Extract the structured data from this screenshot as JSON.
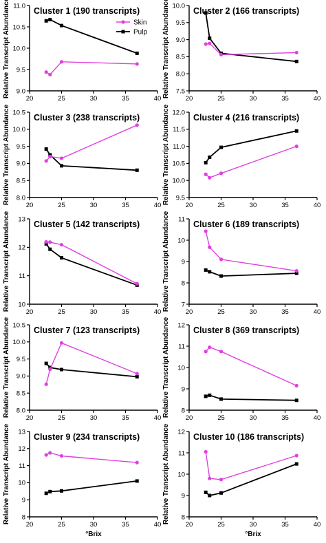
{
  "colors": {
    "skin": "#e040e0",
    "pulp": "#000000"
  },
  "legend": {
    "placement": "top-right of first panel",
    "entries": [
      "Skin",
      "Pulp"
    ]
  },
  "chart_data": [
    {
      "type": "line",
      "title": "Cluster 1 (190 transcripts)",
      "xlabel": "",
      "ylabel": "Relative Transcript Abundance",
      "xlim": [
        20,
        40
      ],
      "xticks": [
        "20",
        "25",
        "30",
        "35",
        "40"
      ],
      "ylim": [
        9.0,
        11.0
      ],
      "yticks": [
        "9.0",
        "9.5",
        "10.0",
        "10.5",
        "11.0"
      ],
      "series": [
        {
          "name": "Skin",
          "x": [
            22.6,
            23.2,
            25.0,
            36.8
          ],
          "y": [
            9.44,
            9.38,
            9.68,
            9.63
          ]
        },
        {
          "name": "Pulp",
          "x": [
            22.6,
            23.2,
            25.0,
            36.8
          ],
          "y": [
            10.64,
            10.67,
            10.53,
            9.88
          ]
        }
      ]
    },
    {
      "type": "line",
      "title": "Cluster 2 (166 transcripts)",
      "xlabel": "",
      "ylabel": "Relative Transcript Abundance",
      "xlim": [
        20,
        40
      ],
      "xticks": [
        "20",
        "25",
        "30",
        "35",
        "40"
      ],
      "ylim": [
        7.5,
        10.0
      ],
      "yticks": [
        "7.5",
        "8.0",
        "8.5",
        "9.0",
        "9.5",
        "10.0"
      ],
      "series": [
        {
          "name": "Skin",
          "x": [
            22.6,
            23.2,
            25.0,
            36.8
          ],
          "y": [
            8.87,
            8.89,
            8.56,
            8.62
          ]
        },
        {
          "name": "Pulp",
          "x": [
            22.6,
            23.2,
            25.0,
            36.8
          ],
          "y": [
            9.78,
            9.04,
            8.6,
            8.36
          ]
        }
      ]
    },
    {
      "type": "line",
      "title": "Cluster 3 (238 transcripts)",
      "xlabel": "",
      "ylabel": "Relative Transcript Abundance",
      "xlim": [
        20,
        40
      ],
      "xticks": [
        "20",
        "25",
        "30",
        "35",
        "40"
      ],
      "ylim": [
        8.0,
        10.5
      ],
      "yticks": [
        "8.0",
        "8.5",
        "9.0",
        "9.5",
        "10.0",
        "10.5"
      ],
      "series": [
        {
          "name": "Skin",
          "x": [
            22.6,
            23.2,
            25.0,
            36.8
          ],
          "y": [
            9.07,
            9.2,
            9.15,
            10.12
          ]
        },
        {
          "name": "Pulp",
          "x": [
            22.6,
            23.2,
            25.0,
            36.8
          ],
          "y": [
            9.42,
            9.25,
            8.93,
            8.8
          ]
        }
      ]
    },
    {
      "type": "line",
      "title": "Cluster 4 (216 transcripts)",
      "xlabel": "",
      "ylabel": "Relative Transcript Abundance",
      "xlim": [
        20,
        40
      ],
      "xticks": [
        "20",
        "25",
        "30",
        "35",
        "40"
      ],
      "ylim": [
        9.5,
        12.0
      ],
      "yticks": [
        "9.5",
        "10.0",
        "10.5",
        "11.0",
        "11.5",
        "12.0"
      ],
      "series": [
        {
          "name": "Skin",
          "x": [
            22.6,
            23.2,
            25.0,
            36.8
          ],
          "y": [
            10.18,
            10.08,
            10.21,
            11.0
          ]
        },
        {
          "name": "Pulp",
          "x": [
            22.6,
            23.2,
            25.0,
            36.8
          ],
          "y": [
            10.52,
            10.68,
            10.97,
            11.45
          ]
        }
      ]
    },
    {
      "type": "line",
      "title": "Cluster 5 (142 transcripts)",
      "xlabel": "",
      "ylabel": "Relative Transcript Abundance",
      "xlim": [
        20,
        40
      ],
      "xticks": [
        "20",
        "25",
        "30",
        "35",
        "40"
      ],
      "ylim": [
        10,
        13
      ],
      "yticks": [
        "10",
        "11",
        "12",
        "13"
      ],
      "series": [
        {
          "name": "Skin",
          "x": [
            22.6,
            23.2,
            25.0,
            36.8
          ],
          "y": [
            12.19,
            12.18,
            12.09,
            10.72
          ]
        },
        {
          "name": "Pulp",
          "x": [
            22.6,
            23.2,
            25.0,
            36.8
          ],
          "y": [
            12.12,
            11.93,
            11.63,
            10.67
          ]
        }
      ]
    },
    {
      "type": "line",
      "title": "Cluster 6 (189 transcripts)",
      "xlabel": "",
      "ylabel": "Relative Transcript Abundance",
      "xlim": [
        20,
        40
      ],
      "xticks": [
        "20",
        "25",
        "30",
        "35",
        "40"
      ],
      "ylim": [
        7,
        11
      ],
      "yticks": [
        "7",
        "8",
        "9",
        "10",
        "11"
      ],
      "series": [
        {
          "name": "Skin",
          "x": [
            22.6,
            23.2,
            25.0,
            36.8
          ],
          "y": [
            10.42,
            9.67,
            9.1,
            8.56
          ]
        },
        {
          "name": "Pulp",
          "x": [
            22.6,
            23.2,
            25.0,
            36.8
          ],
          "y": [
            8.6,
            8.52,
            8.32,
            8.45
          ]
        }
      ]
    },
    {
      "type": "line",
      "title": "Cluster 7 (123 transcripts)",
      "xlabel": "",
      "ylabel": "Relative Transcript Abundance",
      "xlim": [
        20,
        40
      ],
      "xticks": [
        "20",
        "25",
        "30",
        "35",
        "40"
      ],
      "ylim": [
        8.0,
        10.5
      ],
      "yticks": [
        "8.0",
        "8.5",
        "9.0",
        "9.5",
        "10.0",
        "10.5"
      ],
      "series": [
        {
          "name": "Skin",
          "x": [
            22.6,
            23.2,
            25.0,
            36.8
          ],
          "y": [
            8.76,
            9.2,
            9.97,
            9.07
          ]
        },
        {
          "name": "Pulp",
          "x": [
            22.6,
            23.2,
            25.0,
            36.8
          ],
          "y": [
            9.37,
            9.25,
            9.19,
            8.98
          ]
        }
      ]
    },
    {
      "type": "line",
      "title": "Cluster 8 (369 transcripts)",
      "xlabel": "",
      "ylabel": "Relative Transcript Abundance",
      "xlim": [
        20,
        40
      ],
      "xticks": [
        "20",
        "25",
        "30",
        "35",
        "40"
      ],
      "ylim": [
        8,
        12
      ],
      "yticks": [
        "8",
        "9",
        "10",
        "11",
        "12"
      ],
      "series": [
        {
          "name": "Skin",
          "x": [
            22.6,
            23.2,
            25.0,
            36.8
          ],
          "y": [
            10.75,
            10.95,
            10.75,
            9.15
          ]
        },
        {
          "name": "Pulp",
          "x": [
            22.6,
            23.2,
            25.0,
            36.8
          ],
          "y": [
            8.65,
            8.7,
            8.52,
            8.46
          ]
        }
      ]
    },
    {
      "type": "line",
      "title": "Cluster 9 (234 transcripts)",
      "xlabel": "°Brix",
      "ylabel": "Relative Transcript Abundance",
      "xlim": [
        20,
        40
      ],
      "xticks": [
        "20",
        "25",
        "30",
        "35",
        "40"
      ],
      "ylim": [
        8,
        13
      ],
      "yticks": [
        "8",
        "9",
        "10",
        "11",
        "12",
        "13"
      ],
      "series": [
        {
          "name": "Skin",
          "x": [
            22.6,
            23.2,
            25.0,
            36.8
          ],
          "y": [
            11.63,
            11.75,
            11.57,
            11.18
          ]
        },
        {
          "name": "Pulp",
          "x": [
            22.6,
            23.2,
            25.0,
            36.8
          ],
          "y": [
            9.38,
            9.48,
            9.52,
            10.1
          ]
        }
      ]
    },
    {
      "type": "line",
      "title": "Cluster 10 (186 transcripts)",
      "xlabel": "°Brix",
      "ylabel": "Relative Transcript Abundance",
      "xlim": [
        20,
        40
      ],
      "xticks": [
        "20",
        "25",
        "30",
        "35",
        "40"
      ],
      "ylim": [
        8,
        12
      ],
      "yticks": [
        "8",
        "9",
        "10",
        "11",
        "12"
      ],
      "series": [
        {
          "name": "Skin",
          "x": [
            22.6,
            23.2,
            25.0,
            36.8
          ],
          "y": [
            11.05,
            9.8,
            9.75,
            10.87
          ]
        },
        {
          "name": "Pulp",
          "x": [
            22.6,
            23.2,
            25.0,
            36.8
          ],
          "y": [
            9.15,
            9.0,
            9.12,
            10.48
          ]
        }
      ]
    }
  ]
}
